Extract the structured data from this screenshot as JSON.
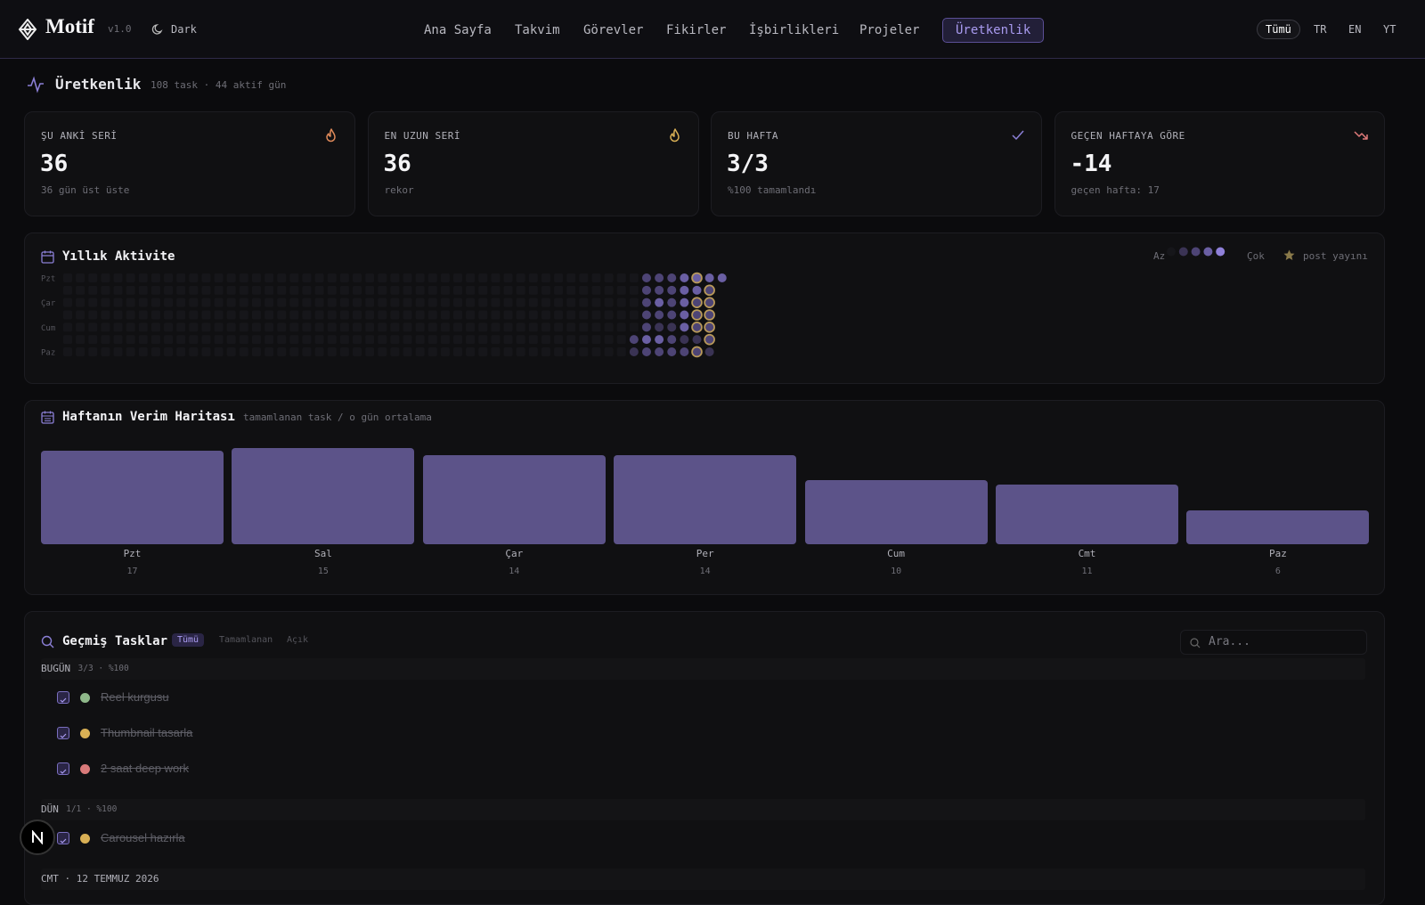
{
  "nav": {
    "brand": "Motif",
    "version": "v1.0",
    "theme": "Dark",
    "links": [
      "Ana Sayfa",
      "Takvim",
      "Görevler",
      "Fikirler",
      "İşbirlikleri",
      "Projeler",
      "Üretkenlik"
    ],
    "active_link": 6,
    "filters": [
      "Tümü",
      "TR",
      "EN",
      "YT"
    ],
    "active_filter": 0
  },
  "page": {
    "title": "Üretkenlik",
    "subtitle": "108 task · 44 aktif gün"
  },
  "stats": [
    {
      "label": "ŞU ANKİ SERİ",
      "value": 36,
      "note": "36 gün üst üste",
      "icon": "flame",
      "color": "#e08a5a"
    },
    {
      "label": "EN UZUN SERİ",
      "value": 36,
      "note": "rekor",
      "icon": "flame",
      "color": "#d9b055"
    },
    {
      "label": "BU HAFTA",
      "value": "3/3",
      "note": "%100 tamamlandı",
      "icon": "check",
      "color": "#8b7fd6"
    },
    {
      "label": "GEÇEN HAFTAYA GÖRE",
      "value": -14,
      "note": "geçen hafta: 17",
      "icon": "trend-down",
      "color": "#e07a7a"
    }
  ],
  "activity": {
    "title": "Yıllık Aktivite",
    "legend_less": "Az",
    "legend_more": "Çok",
    "legend_post": "post yayını",
    "level_colors": [
      "#16161a",
      "#3a3354",
      "#4d4475",
      "#6a5fa3",
      "#8f80d9"
    ],
    "post_color": "#b8995a",
    "day_labels": [
      "Pzt",
      null,
      "Çar",
      null,
      "Cum",
      null,
      "Paz"
    ],
    "weeks": [
      [
        0,
        0,
        0,
        0,
        0,
        0,
        0
      ],
      [
        0,
        0,
        0,
        0,
        0,
        0,
        0
      ],
      [
        0,
        0,
        0,
        0,
        0,
        0,
        0
      ],
      [
        0,
        0,
        0,
        0,
        0,
        0,
        0
      ],
      [
        0,
        0,
        0,
        0,
        0,
        0,
        0
      ],
      [
        0,
        0,
        0,
        0,
        0,
        0,
        0
      ],
      [
        0,
        0,
        0,
        0,
        0,
        0,
        0
      ],
      [
        0,
        0,
        0,
        0,
        0,
        0,
        0
      ],
      [
        0,
        0,
        0,
        0,
        0,
        0,
        0
      ],
      [
        0,
        0,
        0,
        0,
        0,
        0,
        0
      ],
      [
        0,
        0,
        0,
        0,
        0,
        0,
        0
      ],
      [
        0,
        0,
        0,
        0,
        0,
        0,
        0
      ],
      [
        0,
        0,
        0,
        0,
        0,
        0,
        0
      ],
      [
        0,
        0,
        0,
        0,
        0,
        0,
        0
      ],
      [
        0,
        0,
        0,
        0,
        0,
        0,
        0
      ],
      [
        0,
        0,
        0,
        0,
        0,
        0,
        0
      ],
      [
        0,
        0,
        0,
        0,
        0,
        0,
        0
      ],
      [
        0,
        0,
        0,
        0,
        0,
        0,
        0
      ],
      [
        0,
        0,
        0,
        0,
        0,
        0,
        0
      ],
      [
        0,
        0,
        0,
        0,
        0,
        0,
        0
      ],
      [
        0,
        0,
        0,
        0,
        0,
        0,
        0
      ],
      [
        0,
        0,
        0,
        0,
        0,
        0,
        0
      ],
      [
        0,
        0,
        0,
        0,
        0,
        0,
        0
      ],
      [
        0,
        0,
        0,
        0,
        0,
        0,
        0
      ],
      [
        0,
        0,
        0,
        0,
        0,
        0,
        0
      ],
      [
        0,
        0,
        0,
        0,
        0,
        0,
        0
      ],
      [
        0,
        0,
        0,
        0,
        0,
        0,
        0
      ],
      [
        0,
        0,
        0,
        0,
        0,
        0,
        0
      ],
      [
        0,
        0,
        0,
        0,
        0,
        0,
        0
      ],
      [
        0,
        0,
        0,
        0,
        0,
        0,
        0
      ],
      [
        0,
        0,
        0,
        0,
        0,
        0,
        0
      ],
      [
        0,
        0,
        0,
        0,
        0,
        0,
        0
      ],
      [
        0,
        0,
        0,
        0,
        0,
        0,
        0
      ],
      [
        0,
        0,
        0,
        0,
        0,
        0,
        0
      ],
      [
        0,
        0,
        0,
        0,
        0,
        0,
        0
      ],
      [
        0,
        0,
        0,
        0,
        0,
        0,
        0
      ],
      [
        0,
        0,
        0,
        0,
        0,
        0,
        0
      ],
      [
        0,
        0,
        0,
        0,
        0,
        0,
        0
      ],
      [
        0,
        0,
        0,
        0,
        0,
        0,
        0
      ],
      [
        0,
        0,
        0,
        0,
        0,
        0,
        0
      ],
      [
        0,
        0,
        0,
        0,
        0,
        0,
        0
      ],
      [
        0,
        0,
        0,
        0,
        0,
        0,
        0
      ],
      [
        0,
        0,
        0,
        0,
        0,
        0,
        0
      ],
      [
        0,
        0,
        0,
        0,
        0,
        0,
        0
      ],
      [
        0,
        0,
        0,
        0,
        0,
        0,
        0
      ],
      [
        0,
        0,
        0,
        0,
        0,
        2,
        1
      ],
      [
        2,
        2,
        2,
        2,
        2,
        3,
        2
      ],
      [
        2,
        2,
        3,
        2,
        1,
        3,
        2
      ],
      [
        2,
        2,
        2,
        2,
        1,
        2,
        2
      ],
      [
        3,
        3,
        3,
        3,
        3,
        1,
        2
      ],
      [
        3,
        3,
        2,
        2,
        2,
        1,
        2
      ],
      [
        3,
        2,
        2,
        2,
        2,
        2,
        1
      ],
      [
        3,
        null,
        null,
        null,
        null,
        null,
        null
      ]
    ],
    "posts": [
      [
        50,
        0
      ],
      [
        50,
        2
      ],
      [
        50,
        3
      ],
      [
        50,
        4
      ],
      [
        50,
        6
      ],
      [
        51,
        1
      ],
      [
        51,
        2
      ],
      [
        51,
        3
      ],
      [
        51,
        4
      ],
      [
        51,
        5
      ]
    ]
  },
  "weekly": {
    "title": "Haftanın Verim Haritası",
    "subtitle": "tamamlanan task / o gün ortalama",
    "color": "#5c5389",
    "days": [
      "Pzt",
      "Sal",
      "Çar",
      "Per",
      "Cum",
      "Cmt",
      "Paz"
    ],
    "counts": [
      17,
      15,
      14,
      14,
      10,
      11,
      6
    ],
    "bar_heights": [
      97,
      100,
      93,
      93,
      67,
      62,
      35
    ]
  },
  "tasks": {
    "title": "Geçmiş Tasklar",
    "filters": [
      "Tümü",
      "Tamamlanan",
      "Açık"
    ],
    "active_filter": 0,
    "search_placeholder": "Ara...",
    "groups": [
      {
        "label": "BUGÜN",
        "summary": "3/3 · %100",
        "items": [
          {
            "text": "Reel kurgusu",
            "color": "#8fb88a"
          },
          {
            "text": "Thumbnail tasarla",
            "color": "#d9b055"
          },
          {
            "text": "2 saat deep work",
            "color": "#d97a7a"
          }
        ]
      },
      {
        "label": "DÜN",
        "summary": "1/1 · %100",
        "items": [
          {
            "text": "Carousel hazırla",
            "color": "#d9b055"
          }
        ]
      },
      {
        "label": "CMT · 12 TEMMUZ 2026",
        "items": []
      }
    ]
  }
}
